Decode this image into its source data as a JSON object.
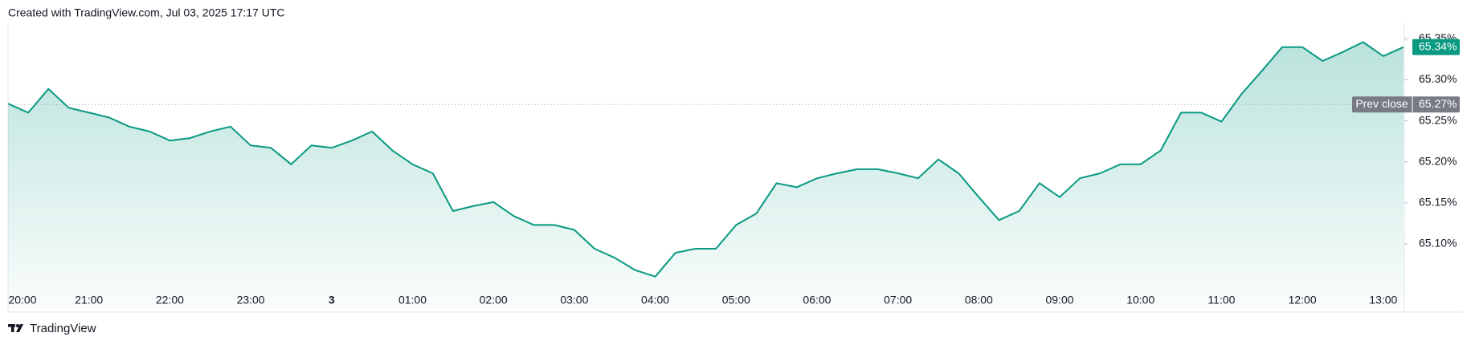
{
  "header": {
    "title": "Created with TradingView.com, Jul 03, 2025 17:17 UTC"
  },
  "footer": {
    "brand": "TradingView"
  },
  "chart_data": {
    "type": "area",
    "color": "#089981",
    "grid": false,
    "x": [
      "20:00",
      "20:15",
      "20:30",
      "20:45",
      "21:00",
      "21:15",
      "21:30",
      "21:45",
      "22:00",
      "22:15",
      "22:30",
      "22:45",
      "23:00",
      "23:15",
      "23:30",
      "23:45",
      "00:00",
      "00:15",
      "00:30",
      "00:45",
      "01:00",
      "01:15",
      "01:30",
      "01:45",
      "02:00",
      "02:15",
      "02:30",
      "02:45",
      "03:00",
      "03:15",
      "03:30",
      "03:45",
      "04:00",
      "04:15",
      "04:30",
      "04:45",
      "05:00",
      "05:15",
      "05:30",
      "05:45",
      "06:00",
      "06:15",
      "06:30",
      "06:45",
      "07:00",
      "07:15",
      "07:30",
      "07:45",
      "08:00",
      "08:15",
      "08:30",
      "08:45",
      "09:00",
      "09:15",
      "09:30",
      "09:45",
      "10:00",
      "10:15",
      "10:30",
      "10:45",
      "11:00",
      "11:15",
      "11:30",
      "11:45",
      "12:00",
      "12:15",
      "12:30",
      "12:45",
      "13:00",
      "13:15"
    ],
    "values": [
      65.271,
      65.26,
      65.289,
      65.266,
      65.26,
      65.254,
      65.243,
      65.237,
      65.226,
      65.229,
      65.237,
      65.243,
      65.22,
      65.217,
      65.197,
      65.22,
      65.217,
      65.226,
      65.237,
      65.214,
      65.197,
      65.186,
      65.14,
      65.146,
      65.151,
      65.134,
      65.123,
      65.123,
      65.117,
      65.094,
      65.083,
      65.068,
      65.06,
      65.089,
      65.094,
      65.094,
      65.123,
      65.137,
      65.174,
      65.169,
      65.18,
      65.186,
      65.191,
      65.191,
      65.186,
      65.18,
      65.203,
      65.186,
      65.157,
      65.129,
      65.14,
      65.174,
      65.157,
      65.18,
      65.186,
      65.197,
      65.197,
      65.214,
      65.26,
      65.26,
      65.249,
      65.283,
      65.311,
      65.34,
      65.34,
      65.323,
      65.334,
      65.346,
      65.329,
      65.34
    ],
    "ylim": [
      65.05,
      65.37
    ],
    "yticks": [
      {
        "value": 65.1,
        "label": "65.10%"
      },
      {
        "value": 65.15,
        "label": "65.15%"
      },
      {
        "value": 65.2,
        "label": "65.20%"
      },
      {
        "value": 65.25,
        "label": "65.25%"
      },
      {
        "value": 65.3,
        "label": "65.30%"
      },
      {
        "value": 65.35,
        "label": "65.35%"
      }
    ],
    "xticks": [
      "20:00",
      "21:00",
      "22:00",
      "23:00",
      {
        "value": "00:00",
        "label": "3"
      },
      "01:00",
      "02:00",
      "03:00",
      "04:00",
      "05:00",
      "06:00",
      "07:00",
      "08:00",
      "09:00",
      "10:00",
      "11:00",
      "12:00",
      "13:00"
    ],
    "prev_close": {
      "name": "Prev close",
      "value": 65.27,
      "label": "65.27%"
    },
    "last_price": {
      "value": 65.34,
      "label": "65.34%"
    }
  }
}
